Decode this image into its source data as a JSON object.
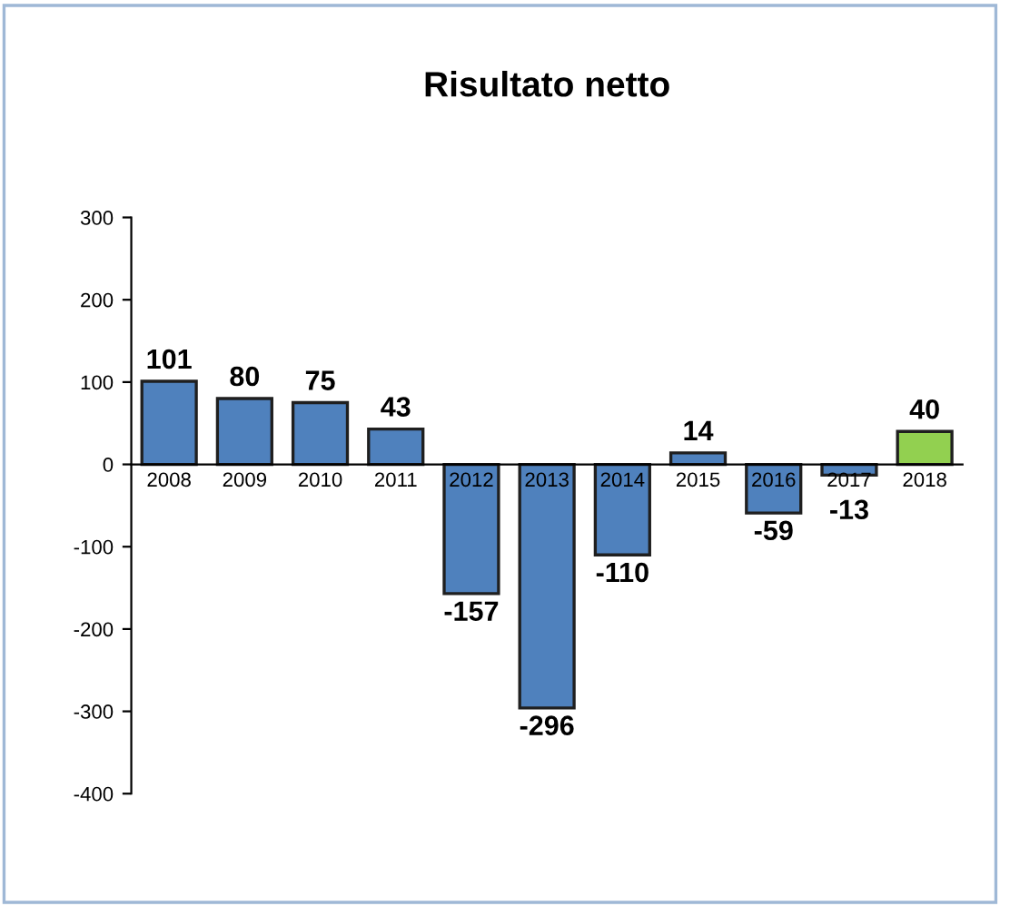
{
  "chart_data": {
    "type": "bar",
    "title": "Risultato netto",
    "categories": [
      "2008",
      "2009",
      "2010",
      "2011",
      "2012",
      "2013",
      "2014",
      "2015",
      "2016",
      "2017",
      "2018"
    ],
    "values": [
      101,
      80,
      75,
      43,
      -157,
      -296,
      -110,
      14,
      -59,
      -13,
      40
    ],
    "colors": [
      "#4f81bd",
      "#4f81bd",
      "#4f81bd",
      "#4f81bd",
      "#4f81bd",
      "#4f81bd",
      "#4f81bd",
      "#4f81bd",
      "#4f81bd",
      "#4f81bd",
      "#92d050"
    ],
    "ylim": [
      -400,
      300
    ],
    "yticks": [
      -400,
      -300,
      -200,
      -100,
      0,
      100,
      200,
      300
    ],
    "data_labels": true,
    "grid": false,
    "legend": false
  }
}
